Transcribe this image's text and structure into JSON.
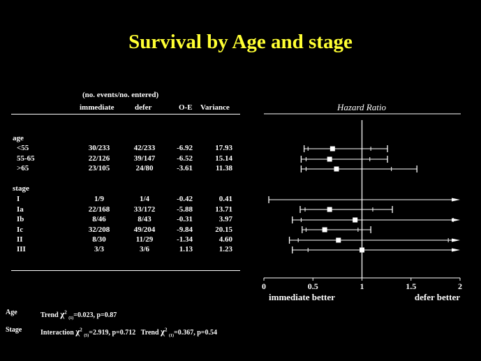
{
  "title": "Survival by Age and stage",
  "table": {
    "subheader": "(no. events/no. entered)",
    "columns": [
      "immediate",
      "defer",
      "O-E",
      "Variance"
    ],
    "groups": [
      {
        "label": "age",
        "rows": [
          {
            "label": "<55",
            "immediate": "30/233",
            "defer": "42/233",
            "oe": "-6.92",
            "variance": "17.93"
          },
          {
            "label": "55-65",
            "immediate": "22/126",
            "defer": "39/147",
            "oe": "-6.52",
            "variance": "15.14"
          },
          {
            "label": ">65",
            "immediate": "23/105",
            "defer": "24/80",
            "oe": "-3.61",
            "variance": "11.38"
          }
        ]
      },
      {
        "label": "stage",
        "rows": [
          {
            "label": "I",
            "immediate": "1/9",
            "defer": "1/4",
            "oe": "-0.42",
            "variance": "0.41"
          },
          {
            "label": "Ia",
            "immediate": "22/168",
            "defer": "33/172",
            "oe": "-5.88",
            "variance": "13.71"
          },
          {
            "label": "Ib",
            "immediate": "8/46",
            "defer": "8/43",
            "oe": "-0.31",
            "variance": "3.97"
          },
          {
            "label": "Ic",
            "immediate": "32/208",
            "defer": "49/204",
            "oe": "-9.84",
            "variance": "20.15"
          },
          {
            "label": "II",
            "immediate": "8/30",
            "defer": "11/29",
            "oe": "-1.34",
            "variance": "4.60"
          },
          {
            "label": "III",
            "immediate": "3/3",
            "defer": "3/6",
            "oe": "1.13",
            "variance": "1.23"
          }
        ]
      }
    ]
  },
  "chart_data": {
    "type": "forest",
    "title": "Hazard Ratio",
    "xlim": [
      0,
      2
    ],
    "x_ticks": [
      "0",
      "0.5",
      "1",
      "1.5",
      "2"
    ],
    "x_tick_values": [
      0,
      0.5,
      1,
      1.5,
      2
    ],
    "reference_line": 1,
    "left_label": "immediate better",
    "right_label": "defer better",
    "rows": [
      {
        "label": "<55",
        "hr": 0.7,
        "ci99": [
          0.41,
          1.26
        ],
        "ci95": [
          0.45,
          1.09
        ],
        "arrow": false
      },
      {
        "label": "55-65",
        "hr": 0.67,
        "ci99": [
          0.38,
          1.26
        ],
        "ci95": [
          0.43,
          1.08
        ],
        "arrow": false
      },
      {
        "label": ">65",
        "hr": 0.74,
        "ci99": [
          0.38,
          1.56
        ],
        "ci95": [
          0.43,
          1.3
        ],
        "arrow": false
      },
      {
        "label": "I",
        "hr": null,
        "ci99": [
          0.05,
          2.0
        ],
        "ci95": [
          0.05,
          2.0
        ],
        "arrow": true
      },
      {
        "label": "Ia",
        "hr": 0.67,
        "ci99": [
          0.37,
          1.31
        ],
        "ci95": [
          0.42,
          1.11
        ],
        "arrow": false
      },
      {
        "label": "Ib",
        "hr": 0.93,
        "ci99": [
          0.29,
          2.0
        ],
        "ci95": [
          0.38,
          1.93
        ],
        "arrow": true
      },
      {
        "label": "Ic",
        "hr": 0.62,
        "ci99": [
          0.39,
          1.09
        ],
        "ci95": [
          0.43,
          0.96
        ],
        "arrow": false
      },
      {
        "label": "II",
        "hr": 0.76,
        "ci99": [
          0.26,
          2.0
        ],
        "ci95": [
          0.35,
          1.88
        ],
        "arrow": true
      },
      {
        "label": "III",
        "hr": 1.0,
        "ci99": [
          0.29,
          2.0
        ],
        "ci95": [
          0.45,
          2.0
        ],
        "arrow": true
      }
    ]
  },
  "footnotes": {
    "age": {
      "label": "Age",
      "trend_pre": "Trend",
      "chi": "χ",
      "sup": "2",
      "sub": "(1)",
      "trend_post": "=0.023, p=0.87"
    },
    "stage": {
      "label": "Stage",
      "inter_pre": "Interaction",
      "chi": "χ",
      "sup": "2",
      "inter_sub": "(5)",
      "inter_post": "=2.919, p=0.712",
      "trend_pre": "Trend",
      "trend_sub": "(1)",
      "trend_post": "=0.367, p=0.54"
    }
  },
  "colors": {
    "background": "#000000",
    "title": "#ffff33",
    "foreground": "#ffffff"
  }
}
